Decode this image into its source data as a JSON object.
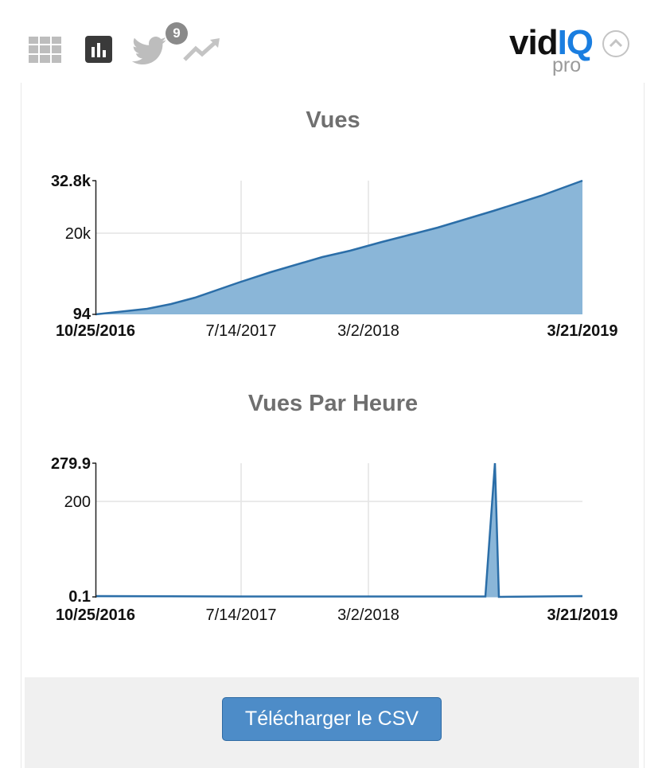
{
  "toolbar": {
    "icons": [
      "grid-icon",
      "bar-chart-icon",
      "twitter-icon",
      "trending-icon"
    ],
    "twitter_badge": "9"
  },
  "logo": {
    "vid": "vid",
    "iq": "IQ",
    "pro": "pro"
  },
  "charts": [
    {
      "title": "Vues",
      "y_top_label": "32.8k",
      "y_mid_label": "20k",
      "y_bottom_label": "94",
      "x_start_label": "10/25/2016",
      "x_tick1_label": "7/14/2017",
      "x_tick2_label": "3/2/2018",
      "x_end_label": "3/21/2019"
    },
    {
      "title": "Vues Par Heure",
      "y_top_label": "279.9",
      "y_mid_label": "200",
      "y_bottom_label": "0.1",
      "x_start_label": "10/25/2016",
      "x_tick1_label": "7/14/2017",
      "x_tick2_label": "3/2/2018",
      "x_end_label": "3/21/2019"
    }
  ],
  "download_button": "Télécharger le CSV",
  "colors": {
    "series_line": "#2b6ea8",
    "series_fill": "#8ab6d8",
    "button": "#4d8cc8",
    "logo_accent": "#1a7ee0"
  },
  "chart_data": [
    {
      "type": "area",
      "title": "Vues",
      "xlim": [
        "10/25/2016",
        "3/21/2019"
      ],
      "ylim": [
        94,
        32800
      ],
      "x_ticks": [
        "10/25/2016",
        "7/14/2017",
        "3/2/2018",
        "3/21/2019"
      ],
      "y_ticks": [
        94,
        20000,
        32800
      ],
      "grid": true,
      "x": [
        "10/25/2016",
        "1/15/2017",
        "4/1/2017",
        "7/14/2017",
        "11/1/2017",
        "3/2/2018",
        "7/1/2018",
        "11/1/2018",
        "3/21/2019"
      ],
      "y": [
        94,
        1400,
        4500,
        7800,
        11300,
        14600,
        19500,
        25200,
        32800
      ]
    },
    {
      "type": "area",
      "title": "Vues Par Heure",
      "xlim": [
        "10/25/2016",
        "3/21/2019"
      ],
      "ylim": [
        0.1,
        279.9
      ],
      "x_ticks": [
        "10/25/2016",
        "7/14/2017",
        "3/2/2018",
        "3/21/2019"
      ],
      "y_ticks": [
        0.1,
        200,
        279.9
      ],
      "grid": true,
      "x": [
        "10/25/2016",
        "7/14/2017",
        "3/2/2018",
        "10/20/2018",
        "11/15/2018",
        "12/10/2018",
        "3/21/2019"
      ],
      "y": [
        2,
        1,
        1,
        1,
        279.9,
        0.5,
        1
      ]
    }
  ]
}
